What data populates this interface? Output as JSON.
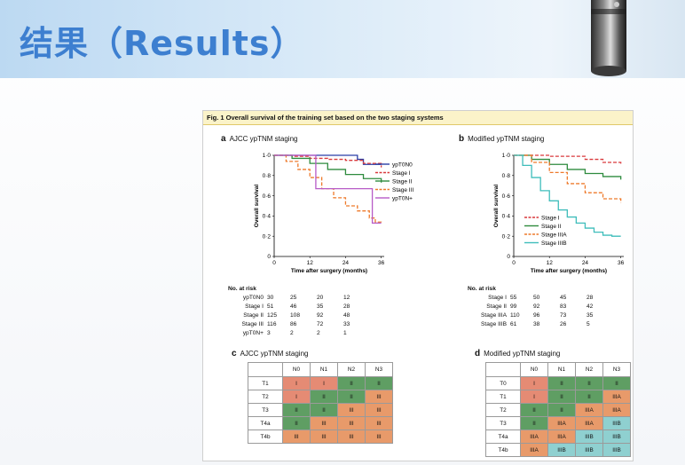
{
  "header": {
    "title": "结果（Results）"
  },
  "figure": {
    "caption": "Fig. 1 Overall survival of the training set based on the two staging systems",
    "panel_a": {
      "letter": "a",
      "title": "AJCC ypTNM staging"
    },
    "panel_b": {
      "letter": "b",
      "title": "Modified ypTNM staging"
    },
    "panel_c": {
      "letter": "c",
      "title": "AJCC ypTNM staging"
    },
    "panel_d": {
      "letter": "d",
      "title": "Modified ypTNM staging"
    },
    "risk_a": {
      "header": "No. at risk",
      "rows": [
        {
          "label": "ypT0N0",
          "values": [
            "30",
            "25",
            "20",
            "12"
          ]
        },
        {
          "label": "Stage I",
          "values": [
            "51",
            "46",
            "35",
            "28"
          ]
        },
        {
          "label": "Stage II",
          "values": [
            "125",
            "108",
            "92",
            "48"
          ]
        },
        {
          "label": "Stage III",
          "values": [
            "116",
            "86",
            "72",
            "33"
          ]
        },
        {
          "label": "ypT0N+",
          "values": [
            "3",
            "2",
            "2",
            "1"
          ]
        }
      ]
    },
    "risk_b": {
      "header": "No. at risk",
      "rows": [
        {
          "label": "Stage I",
          "values": [
            "55",
            "50",
            "45",
            "28"
          ]
        },
        {
          "label": "Stage II",
          "values": [
            "99",
            "92",
            "83",
            "42"
          ]
        },
        {
          "label": "Stage IIIA",
          "values": [
            "110",
            "96",
            "73",
            "35"
          ]
        },
        {
          "label": "Stage IIIB",
          "values": [
            "61",
            "38",
            "26",
            "5"
          ]
        }
      ]
    },
    "table_c": {
      "cols": [
        "N0",
        "N1",
        "N2",
        "N3"
      ],
      "rows": [
        {
          "label": "T1",
          "cells": [
            "I",
            "I",
            "II",
            "II"
          ]
        },
        {
          "label": "T2",
          "cells": [
            "I",
            "II",
            "II",
            "III"
          ]
        },
        {
          "label": "T3",
          "cells": [
            "II",
            "II",
            "III",
            "III"
          ]
        },
        {
          "label": "T4a",
          "cells": [
            "II",
            "III",
            "III",
            "III"
          ]
        },
        {
          "label": "T4b",
          "cells": [
            "III",
            "III",
            "III",
            "III"
          ]
        }
      ]
    },
    "table_d": {
      "cols": [
        "N0",
        "N1",
        "N2",
        "N3"
      ],
      "rows": [
        {
          "label": "T0",
          "cells": [
            "I",
            "II",
            "II",
            "II"
          ]
        },
        {
          "label": "T1",
          "cells": [
            "I",
            "II",
            "II",
            "IIIA"
          ]
        },
        {
          "label": "T2",
          "cells": [
            "II",
            "II",
            "IIIA",
            "IIIA"
          ]
        },
        {
          "label": "T3",
          "cells": [
            "II",
            "IIIA",
            "IIIA",
            "IIIB"
          ]
        },
        {
          "label": "T4a",
          "cells": [
            "IIIA",
            "IIIA",
            "IIIB",
            "IIIB"
          ]
        },
        {
          "label": "T4b",
          "cells": [
            "IIIA",
            "IIIB",
            "IIIB",
            "IIIB"
          ]
        }
      ]
    }
  },
  "chart_data": [
    {
      "type": "line",
      "title": "AJCC ypTNM staging",
      "xlabel": "Time after surgery (months)",
      "ylabel": "Overall survival",
      "xlim": [
        0,
        37
      ],
      "ylim": [
        0,
        1.0
      ],
      "xticks": [
        "0",
        "12",
        "24",
        "36"
      ],
      "yticks": [
        "0",
        "0·2",
        "0·4",
        "0·6",
        "0·8",
        "1·0"
      ],
      "legend_position": "top-right",
      "series": [
        {
          "name": "ypT0N0",
          "color": "#2a3fa6",
          "dash": "",
          "x": [
            0,
            10,
            20,
            28,
            30,
            36
          ],
          "y": [
            1.0,
            1.0,
            1.0,
            0.96,
            0.91,
            0.91
          ]
        },
        {
          "name": "Stage I",
          "color": "#d9393c",
          "dash": "4,2",
          "x": [
            0,
            6,
            12,
            18,
            24,
            30,
            36
          ],
          "y": [
            1.0,
            0.99,
            0.97,
            0.96,
            0.95,
            0.92,
            0.88
          ]
        },
        {
          "name": "Stage II",
          "color": "#2e8b3e",
          "dash": "",
          "x": [
            0,
            6,
            12,
            18,
            24,
            30,
            36
          ],
          "y": [
            1.0,
            0.97,
            0.92,
            0.86,
            0.81,
            0.77,
            0.73
          ]
        },
        {
          "name": "Stage III",
          "color": "#ee7a2b",
          "dash": "4,2",
          "x": [
            0,
            4,
            8,
            12,
            16,
            20,
            24,
            28,
            32,
            34,
            36
          ],
          "y": [
            1.0,
            0.94,
            0.86,
            0.78,
            0.67,
            0.58,
            0.5,
            0.45,
            0.38,
            0.34,
            0.33
          ]
        },
        {
          "name": "ypT0N+",
          "color": "#b75bc7",
          "dash": "",
          "x": [
            0,
            6,
            14,
            14,
            18,
            24,
            33,
            33,
            36
          ],
          "y": [
            1.0,
            1.0,
            1.0,
            0.67,
            0.67,
            0.67,
            0.67,
            0.33,
            0.33
          ],
          "step": true
        }
      ]
    },
    {
      "type": "line",
      "title": "Modified ypTNM staging",
      "xlabel": "Time after surgery (months)",
      "ylabel": "Overall survival",
      "xlim": [
        0,
        37
      ],
      "ylim": [
        0,
        1.0
      ],
      "xticks": [
        "0",
        "12",
        "24",
        "36"
      ],
      "yticks": [
        "0",
        "0·2",
        "0·4",
        "0·6",
        "0·8",
        "1·0"
      ],
      "legend_position": "bottom-left",
      "series": [
        {
          "name": "Stage I",
          "color": "#d9393c",
          "dash": "4,2",
          "x": [
            0,
            12,
            24,
            30,
            36
          ],
          "y": [
            1.0,
            0.99,
            0.96,
            0.93,
            0.9
          ]
        },
        {
          "name": "Stage II",
          "color": "#2e8b3e",
          "dash": "",
          "x": [
            0,
            6,
            12,
            18,
            24,
            30,
            36
          ],
          "y": [
            1.0,
            0.96,
            0.91,
            0.86,
            0.82,
            0.79,
            0.76
          ]
        },
        {
          "name": "Stage IIIA",
          "color": "#ee7a2b",
          "dash": "4,2",
          "x": [
            0,
            6,
            12,
            18,
            24,
            30,
            36
          ],
          "y": [
            1.0,
            0.93,
            0.83,
            0.72,
            0.63,
            0.57,
            0.53
          ]
        },
        {
          "name": "Stage IIIB",
          "color": "#3fbdbb",
          "dash": "",
          "x": [
            0,
            3,
            6,
            9,
            12,
            15,
            18,
            21,
            24,
            27,
            30,
            33,
            36
          ],
          "y": [
            1.0,
            0.9,
            0.78,
            0.65,
            0.55,
            0.46,
            0.39,
            0.33,
            0.28,
            0.24,
            0.21,
            0.2,
            0.2
          ]
        }
      ]
    }
  ]
}
